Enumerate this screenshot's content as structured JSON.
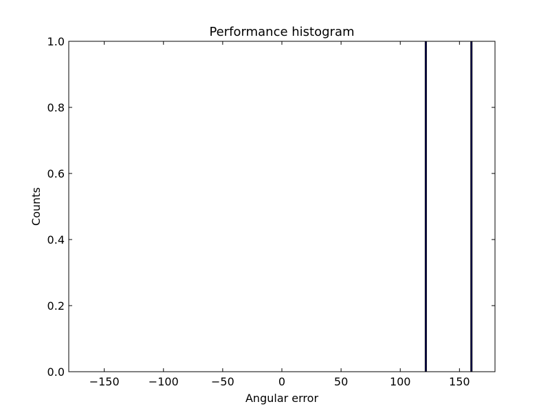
{
  "chart_data": {
    "type": "bar",
    "title": "Performance histogram",
    "xlabel": "Angular error",
    "ylabel": "Counts",
    "xlim": [
      -180,
      180
    ],
    "ylim": [
      0,
      1
    ],
    "grid": false,
    "x_ticks": [
      -150,
      -100,
      -50,
      0,
      50,
      100,
      150
    ],
    "x_tick_labels": [
      "−150",
      "−100",
      "−50",
      "0",
      "50",
      "100",
      "150"
    ],
    "y_ticks": [
      0,
      0.2,
      0.4,
      0.6,
      0.8,
      1.0
    ],
    "y_tick_labels": [
      "0.0",
      "0.2",
      "0.4",
      "0.6",
      "0.8",
      "1.0"
    ],
    "bars": [
      {
        "x_start": 121.0,
        "x_end": 122.0,
        "value": 1
      },
      {
        "x_start": 159.5,
        "x_end": 160.5,
        "value": 1
      }
    ],
    "colors": {
      "bar_fill": "#000080",
      "bar_edge": "#000000",
      "axes": "#000000"
    }
  }
}
